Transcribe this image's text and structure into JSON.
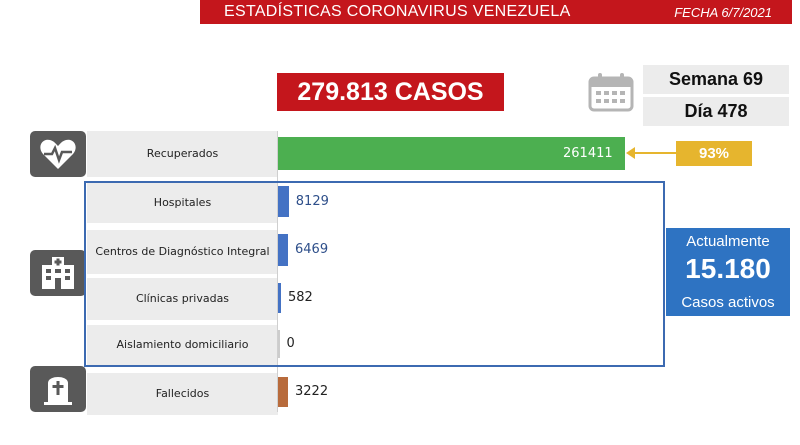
{
  "header": {
    "title": "ESTADÍSTICAS CORONAVIRUS VENEZUELA",
    "date": "FECHA 6/7/2021"
  },
  "summary": {
    "cases": "279.813 CASOS",
    "week": "Semana 69",
    "day": "Día 478",
    "recovered_percent": "93%",
    "active_label_top": "Actualmente",
    "active_value": "15.180",
    "active_label_bottom": "Casos activos"
  },
  "colors": {
    "header_red": "#c4161c",
    "recovered_green": "#4caf50",
    "hospital_blue": "#4472c4",
    "deceased_brown": "#b86b3c",
    "highlight_gold": "#e6b52e",
    "active_blue": "#2e73c2"
  },
  "icons": [
    "heart-monitor-icon",
    "hospital-icon",
    "tombstone-icon",
    "calendar-icon"
  ],
  "chart_data": {
    "type": "bar",
    "orientation": "horizontal",
    "categories": [
      "Recuperados",
      "Hospitales",
      "Centros de Diagnóstico Integral",
      "Clínicas privadas",
      "Aislamiento domiciliario",
      "Fallecidos"
    ],
    "values": [
      261411,
      8129,
      6469,
      582,
      0,
      3222
    ],
    "value_labels": [
      "261411",
      "8129",
      "6469",
      "582",
      "0",
      "3222"
    ],
    "colors": [
      "#4caf50",
      "#4472c4",
      "#4472c4",
      "#4472c4",
      "#4472c4",
      "#b86b3c"
    ],
    "xlim": [
      0,
      261411
    ],
    "grid": false
  }
}
